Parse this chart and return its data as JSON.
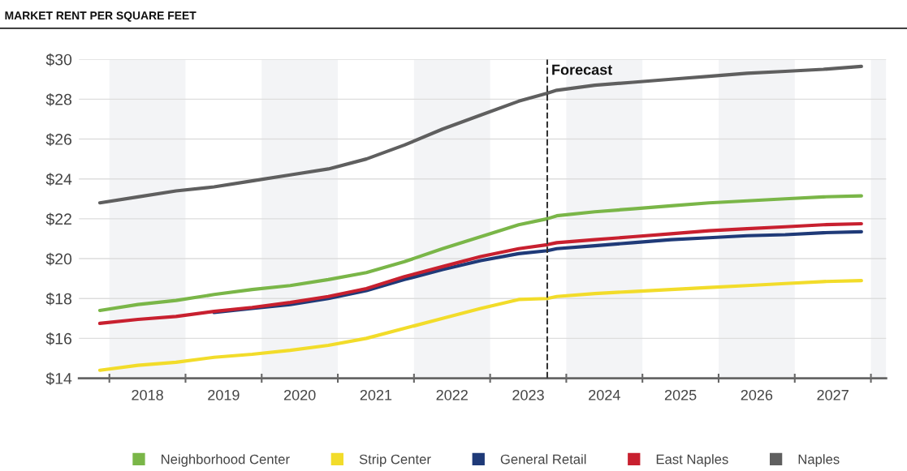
{
  "chart_data": {
    "type": "line",
    "title": "MARKET RENT PER SQUARE FEET",
    "x": [
      2017.875,
      2018.375,
      2018.875,
      2019.375,
      2019.875,
      2020.375,
      2020.875,
      2021.375,
      2021.875,
      2022.375,
      2022.875,
      2023.375,
      2023.75,
      2023.875,
      2024.375,
      2024.875,
      2025.375,
      2025.875,
      2026.375,
      2026.875,
      2027.375,
      2027.875
    ],
    "series": [
      {
        "name": "Neighborhood Center",
        "color": "#7ab648",
        "values": [
          17.4,
          17.7,
          17.9,
          18.2,
          18.45,
          18.65,
          18.95,
          19.3,
          19.85,
          20.5,
          21.1,
          21.7,
          22.0,
          22.15,
          22.35,
          22.5,
          22.65,
          22.8,
          22.9,
          23.0,
          23.1,
          23.15
        ]
      },
      {
        "name": "Strip Center",
        "color": "#f2dc2a",
        "values": [
          14.4,
          14.65,
          14.8,
          15.05,
          15.2,
          15.4,
          15.65,
          16.0,
          16.5,
          17.0,
          17.5,
          17.95,
          18.0,
          18.1,
          18.25,
          18.35,
          18.45,
          18.55,
          18.65,
          18.75,
          18.85,
          18.9
        ]
      },
      {
        "name": "General Retail",
        "color": "#1f3a78",
        "values": [
          null,
          null,
          null,
          17.3,
          17.5,
          17.7,
          18.0,
          18.4,
          18.95,
          19.45,
          19.9,
          20.25,
          20.4,
          20.5,
          20.65,
          20.8,
          20.95,
          21.05,
          21.15,
          21.2,
          21.3,
          21.35
        ]
      },
      {
        "name": "East Naples",
        "color": "#c8202f",
        "values": [
          16.75,
          16.95,
          17.1,
          17.35,
          17.55,
          17.8,
          18.1,
          18.5,
          19.1,
          19.6,
          20.1,
          20.5,
          20.7,
          20.8,
          20.95,
          21.1,
          21.25,
          21.4,
          21.5,
          21.6,
          21.7,
          21.75
        ]
      },
      {
        "name": "Naples",
        "color": "#5f5f5f",
        "values": [
          22.8,
          23.1,
          23.4,
          23.6,
          23.9,
          24.2,
          24.5,
          25.0,
          25.7,
          26.5,
          27.2,
          27.9,
          28.3,
          28.45,
          28.7,
          28.85,
          29.0,
          29.15,
          29.3,
          29.4,
          29.5,
          29.65
        ]
      }
    ],
    "xlim": [
      2017.6,
      2028.2
    ],
    "xticks": [
      {
        "value": 2018,
        "label": null
      },
      {
        "value": 2018.5,
        "label": "2018"
      },
      {
        "value": 2019,
        "label": null
      },
      {
        "value": 2019.5,
        "label": "2019"
      },
      {
        "value": 2020,
        "label": null
      },
      {
        "value": 2020.5,
        "label": "2020"
      },
      {
        "value": 2021,
        "label": null
      },
      {
        "value": 2021.5,
        "label": "2021"
      },
      {
        "value": 2022,
        "label": null
      },
      {
        "value": 2022.5,
        "label": "2022"
      },
      {
        "value": 2023,
        "label": null
      },
      {
        "value": 2023.5,
        "label": "2023"
      },
      {
        "value": 2024,
        "label": null
      },
      {
        "value": 2024.5,
        "label": "2024"
      },
      {
        "value": 2025,
        "label": null
      },
      {
        "value": 2025.5,
        "label": "2025"
      },
      {
        "value": 2026,
        "label": null
      },
      {
        "value": 2026.5,
        "label": "2026"
      },
      {
        "value": 2027,
        "label": null
      },
      {
        "value": 2027.5,
        "label": "2027"
      },
      {
        "value": 2028,
        "label": null
      }
    ],
    "ylim": [
      14,
      30
    ],
    "yticks": [
      {
        "value": 14,
        "label": "$14"
      },
      {
        "value": 16,
        "label": "$16"
      },
      {
        "value": 18,
        "label": "$18"
      },
      {
        "value": 20,
        "label": "$20"
      },
      {
        "value": 22,
        "label": "$22"
      },
      {
        "value": 24,
        "label": "$24"
      },
      {
        "value": 26,
        "label": "$26"
      },
      {
        "value": 28,
        "label": "$28"
      },
      {
        "value": 30,
        "label": "$30"
      }
    ],
    "ref_lines": [
      {
        "axis": "x",
        "value": 2023.75,
        "label": "Forecast",
        "color": "#333333",
        "line_style": "dashed"
      }
    ],
    "bands": [
      {
        "axis": "x",
        "from": 2018,
        "to": 2019,
        "color": "#f3f4f6"
      },
      {
        "axis": "x",
        "from": 2020,
        "to": 2021,
        "color": "#f3f4f6"
      },
      {
        "axis": "x",
        "from": 2022,
        "to": 2023,
        "color": "#f3f4f6"
      },
      {
        "axis": "x",
        "from": 2024,
        "to": 2025,
        "color": "#f3f4f6"
      },
      {
        "axis": "x",
        "from": 2026,
        "to": 2027,
        "color": "#f3f4f6"
      },
      {
        "axis": "x",
        "from": 2028,
        "to": 2028.2,
        "color": "#f3f4f6"
      }
    ],
    "grid": "y",
    "legend": "bottom",
    "marker": "none",
    "line_style": "solid"
  }
}
